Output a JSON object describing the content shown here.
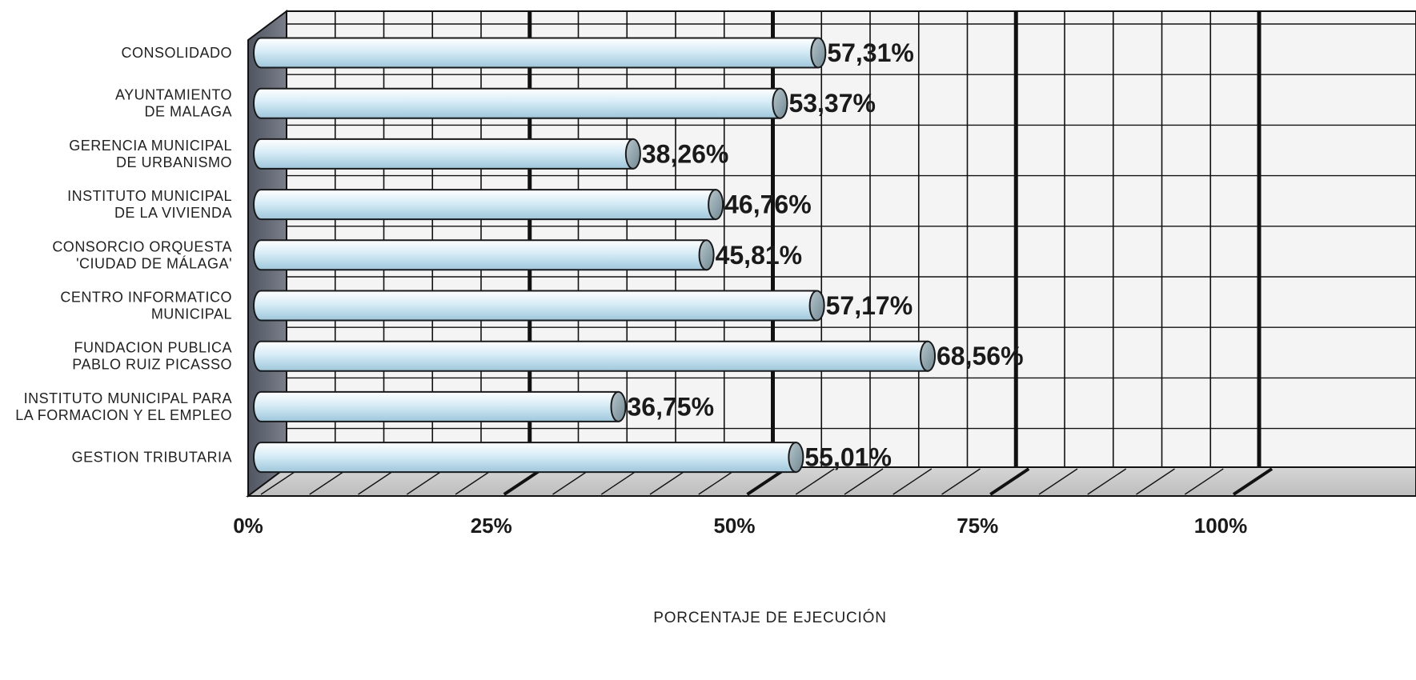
{
  "chart_data": {
    "type": "bar",
    "orientation": "horizontal",
    "categories": [
      [
        "CONSOLIDADO"
      ],
      [
        "AYUNTAMIENTO",
        "DE MALAGA"
      ],
      [
        "GERENCIA MUNICIPAL",
        "DE URBANISMO"
      ],
      [
        "INSTITUTO MUNICIPAL",
        "DE LA VIVIENDA"
      ],
      [
        "CONSORCIO ORQUESTA",
        "'CIUDAD DE MÁLAGA'"
      ],
      [
        "CENTRO INFORMATICO",
        "MUNICIPAL"
      ],
      [
        "FUNDACION PUBLICA",
        "PABLO RUIZ PICASSO"
      ],
      [
        "INSTITUTO MUNICIPAL PARA",
        "LA FORMACION Y EL EMPLEO"
      ],
      [
        "GESTION TRIBUTARIA"
      ]
    ],
    "values": [
      57.31,
      53.37,
      38.26,
      46.76,
      45.81,
      57.17,
      68.56,
      36.75,
      55.01
    ],
    "value_labels": [
      "57,31%",
      "53,37%",
      "38,26%",
      "46,76%",
      "45,81%",
      "57,17%",
      "68,56%",
      "36,75%",
      "55,01%"
    ],
    "x_ticks": [
      0,
      25,
      50,
      75,
      100
    ],
    "x_tick_labels": [
      "0%",
      "25%",
      "50%",
      "75%",
      "100%"
    ],
    "xlim": [
      0,
      100
    ],
    "xlabel": "PORCENTAJE DE EJECUCIÓN",
    "ylabel": "",
    "title": "",
    "grid": true,
    "bar_style": "3d-cylinder",
    "colors": {
      "bar_light": "#ffffff",
      "bar_mid": "#d6ecf6",
      "bar_dark": "#9ec7dc",
      "bar_outline": "#1a1a1a",
      "wall": "#f4f4f4",
      "floor": "#c8c8c8",
      "side_wall": "#5f6470",
      "grid": "#111111"
    }
  }
}
